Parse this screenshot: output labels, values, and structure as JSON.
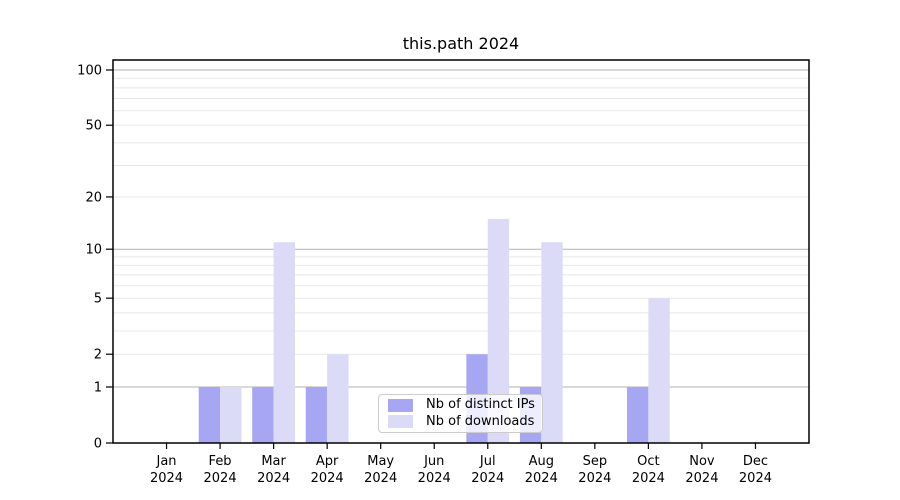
{
  "chart_data": {
    "type": "bar",
    "title": "this.path 2024",
    "categories": [
      "Jan",
      "Feb",
      "Mar",
      "Apr",
      "May",
      "Jun",
      "Jul",
      "Aug",
      "Sep",
      "Oct",
      "Nov",
      "Dec"
    ],
    "tick_year": "2024",
    "series": [
      {
        "name": "Nb of distinct IPs",
        "color": "#a6a6f2",
        "values": [
          0,
          1,
          1,
          1,
          0,
          0,
          2,
          1,
          0,
          1,
          0,
          0
        ]
      },
      {
        "name": "Nb of downloads",
        "color": "#dbdbf8",
        "values": [
          0,
          1,
          11,
          2,
          0,
          0,
          15,
          11,
          0,
          5,
          0,
          0
        ]
      }
    ],
    "scale": "log1p",
    "yticks": [
      0,
      1,
      2,
      5,
      10,
      20,
      50,
      100
    ],
    "ylim": [
      0,
      120
    ],
    "grid": {
      "major_values": [
        1,
        10,
        100
      ],
      "minor_values": [
        2,
        3,
        4,
        5,
        6,
        7,
        8,
        9,
        20,
        30,
        40,
        50,
        60,
        70,
        80,
        90
      ]
    },
    "legend_position": "lower center",
    "colors": {
      "grid_major": "#b2b2b2",
      "grid_minor": "#e8e8e8",
      "axis": "#000000",
      "text": "#000000",
      "background": "#ffffff"
    }
  }
}
